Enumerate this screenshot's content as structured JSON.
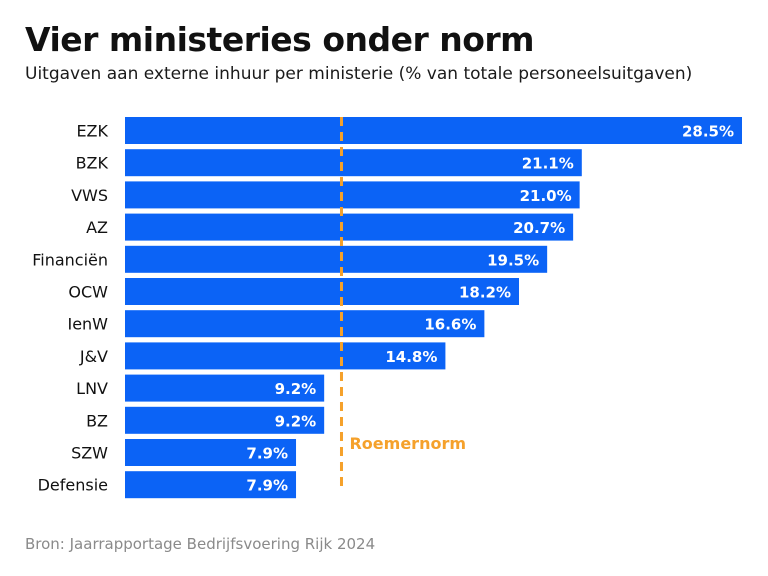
{
  "title": "Vier ministeries onder norm",
  "subtitle": "Uitgaven aan externe inhuur per ministerie (% van totale personeelsuitgaven)",
  "source": "Bron: Jaarrapportage Bedrijfsvoering Rijk 2024",
  "colors": {
    "bar": "#0b63f6",
    "bar_label": "#ffffff",
    "norm_line": "#f5a12b",
    "category_text": "#111111"
  },
  "chart_data": {
    "type": "bar",
    "orientation": "horizontal",
    "categories": [
      "EZK",
      "BZK",
      "VWS",
      "AZ",
      "Financiën",
      "OCW",
      "IenW",
      "J&V",
      "LNV",
      "BZ",
      "SZW",
      "Defensie"
    ],
    "values": [
      28.5,
      21.1,
      21.0,
      20.7,
      19.5,
      18.2,
      16.6,
      14.8,
      9.2,
      9.2,
      7.9,
      7.9
    ],
    "value_labels": [
      "28.5%",
      "21.1%",
      "21.0%",
      "20.7%",
      "19.5%",
      "18.2%",
      "16.6%",
      "14.8%",
      "9.2%",
      "9.2%",
      "7.9%",
      "7.9%"
    ],
    "xlim": [
      0,
      28.5
    ],
    "reference_line": {
      "value": 10,
      "label": "Roemernorm",
      "style": "dashed"
    },
    "grid": false,
    "legend": "none"
  }
}
